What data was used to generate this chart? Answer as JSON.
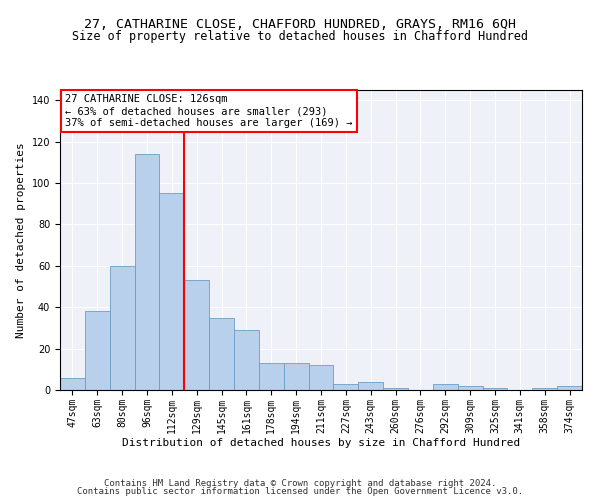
{
  "title1": "27, CATHARINE CLOSE, CHAFFORD HUNDRED, GRAYS, RM16 6QH",
  "title2": "Size of property relative to detached houses in Chafford Hundred",
  "xlabel": "Distribution of detached houses by size in Chafford Hundred",
  "ylabel": "Number of detached properties",
  "categories": [
    "47sqm",
    "63sqm",
    "80sqm",
    "96sqm",
    "112sqm",
    "129sqm",
    "145sqm",
    "161sqm",
    "178sqm",
    "194sqm",
    "211sqm",
    "227sqm",
    "243sqm",
    "260sqm",
    "276sqm",
    "292sqm",
    "309sqm",
    "325sqm",
    "341sqm",
    "358sqm",
    "374sqm"
  ],
  "values": [
    6,
    38,
    60,
    114,
    95,
    53,
    35,
    29,
    13,
    13,
    12,
    3,
    4,
    1,
    0,
    3,
    2,
    1,
    0,
    1,
    2
  ],
  "bar_color": "#b8d0eb",
  "bar_edge_color": "#6a9ec5",
  "vline_color": "red",
  "vline_pos": 4.5,
  "annotation_line1": "27 CATHARINE CLOSE: 126sqm",
  "annotation_line2": "← 63% of detached houses are smaller (293)",
  "annotation_line3": "37% of semi-detached houses are larger (169) →",
  "annotation_box_color": "white",
  "annotation_box_edge_color": "red",
  "ylim": [
    0,
    145
  ],
  "yticks": [
    0,
    20,
    40,
    60,
    80,
    100,
    120,
    140
  ],
  "footer1": "Contains HM Land Registry data © Crown copyright and database right 2024.",
  "footer2": "Contains public sector information licensed under the Open Government Licence v3.0.",
  "bg_color": "#eef2f8",
  "grid_color": "#ffffff",
  "title1_fontsize": 9.5,
  "title2_fontsize": 8.5,
  "xlabel_fontsize": 8,
  "ylabel_fontsize": 8,
  "tick_fontsize": 7,
  "annot_fontsize": 7.5,
  "footer_fontsize": 6.5
}
